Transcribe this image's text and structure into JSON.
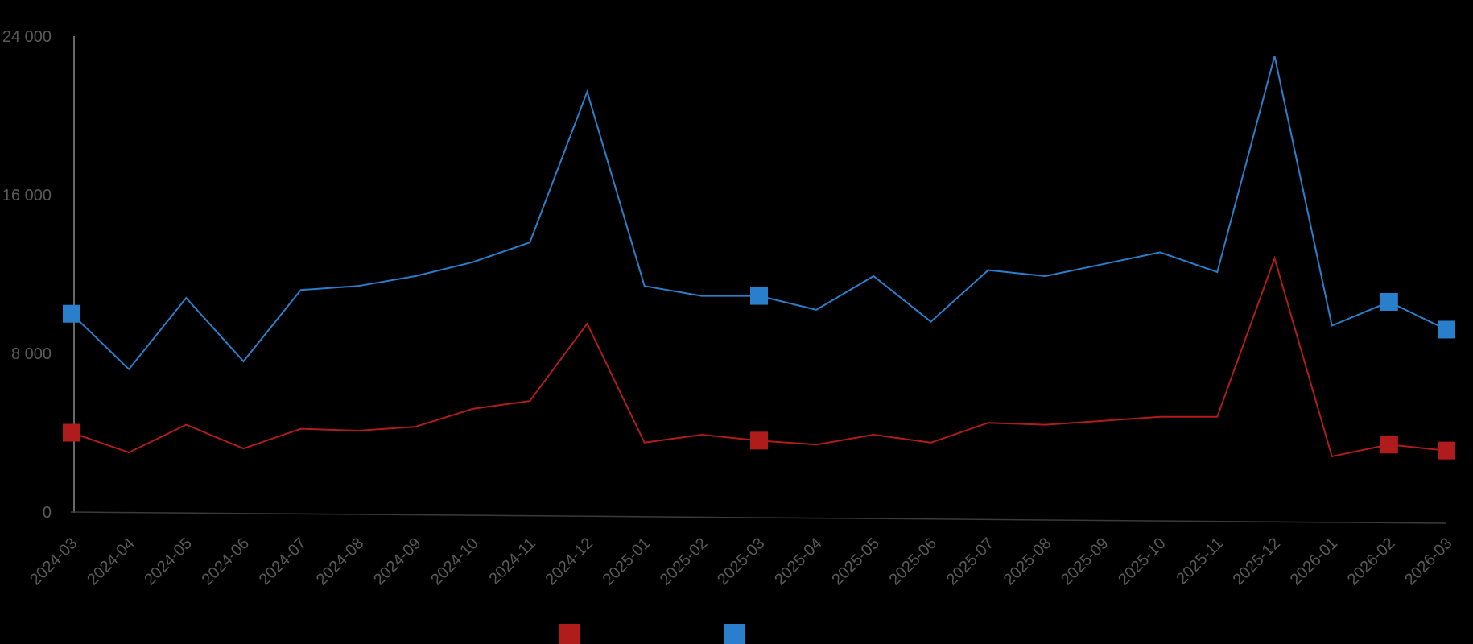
{
  "chart_data": {
    "type": "line",
    "categories": [
      "2024-03",
      "2024-04",
      "2024-05",
      "2024-06",
      "2024-07",
      "2024-08",
      "2024-09",
      "2024-10",
      "2024-11",
      "2024-12",
      "2025-01",
      "2025-02",
      "2025-03",
      "2025-04",
      "2025-05",
      "2025-06",
      "2025-07",
      "2025-08",
      "2025-09",
      "2025-10",
      "2025-11",
      "2025-12",
      "2026-01",
      "2026-02",
      "2026-03"
    ],
    "y_ticks": [
      "0",
      "8 000",
      "16 000",
      "24 000"
    ],
    "ylim": [
      0,
      24000
    ],
    "grid": false,
    "legend_position": "bottom",
    "title": "",
    "xlabel": "",
    "ylabel": "",
    "series": [
      {
        "color": "#b01c1c",
        "values": [
          4000,
          3000,
          4400,
          3200,
          4200,
          4100,
          4300,
          5200,
          5600,
          9500,
          3500,
          3900,
          3600,
          3400,
          3900,
          3500,
          4500,
          4400,
          4600,
          4800,
          4800,
          12800,
          2800,
          3400,
          3100
        ],
        "marker_indices": [
          0,
          12,
          23,
          24
        ]
      },
      {
        "color": "#2a7fcc",
        "values": [
          10000,
          7200,
          10800,
          7600,
          11200,
          11400,
          11900,
          12600,
          13600,
          21200,
          11400,
          10900,
          10900,
          10200,
          11900,
          9600,
          12200,
          11900,
          12500,
          13100,
          12100,
          23000,
          9400,
          10600,
          9200
        ],
        "marker_indices": [
          0,
          12,
          23,
          24
        ]
      }
    ]
  }
}
